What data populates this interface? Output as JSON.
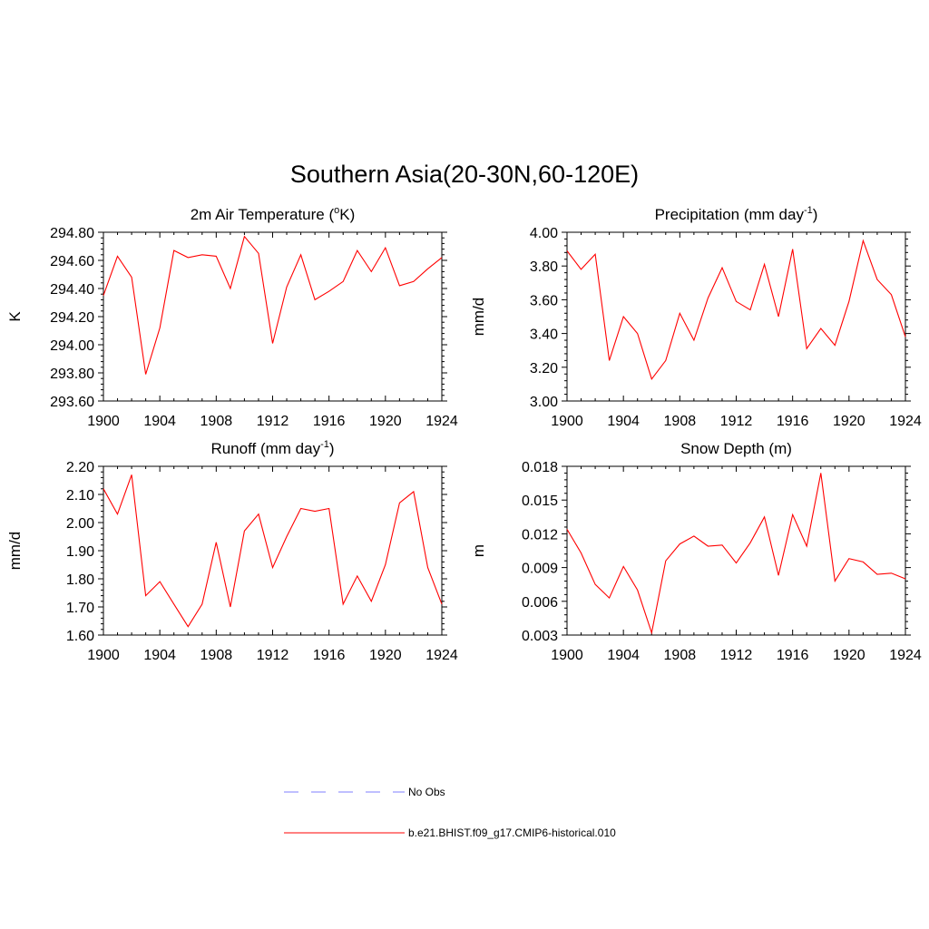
{
  "title": "Southern Asia(20-30N,60-120E)",
  "colors": {
    "model": "#ff0000",
    "obs": "#9999ff",
    "axis": "#000000"
  },
  "legend": {
    "entries": [
      {
        "label": "No Obs",
        "style": "dashed",
        "color": "#9999ff"
      },
      {
        "label": "b.e21.BHIST.f09_g17.CMIP6-historical.010",
        "style": "solid",
        "color": "#ff0000"
      }
    ]
  },
  "chart_data": [
    {
      "type": "line",
      "title_main": "2m Air Temperature (",
      "title_sup": "o",
      "title_after": "K)",
      "ylabel": "K",
      "xlim": [
        1900,
        1924
      ],
      "ylim": [
        293.6,
        294.8
      ],
      "xticks": [
        1900,
        1904,
        1908,
        1912,
        1916,
        1920,
        1924
      ],
      "xtick_labels": [
        "1900",
        "1904",
        "1908",
        "1912",
        "1916",
        "1920",
        "1924"
      ],
      "yticks": [
        293.6,
        293.8,
        294.0,
        294.2,
        294.4,
        294.6,
        294.8
      ],
      "ytick_labels": [
        "293.60",
        "293.80",
        "294.00",
        "294.20",
        "294.40",
        "294.60",
        "294.80"
      ],
      "x": [
        1900,
        1901,
        1902,
        1903,
        1904,
        1905,
        1906,
        1907,
        1908,
        1909,
        1910,
        1911,
        1912,
        1913,
        1914,
        1915,
        1916,
        1917,
        1918,
        1919,
        1920,
        1921,
        1922,
        1923,
        1924
      ],
      "series": [
        {
          "values": [
            294.35,
            294.63,
            294.48,
            293.79,
            294.12,
            294.67,
            294.62,
            294.64,
            294.63,
            294.4,
            294.77,
            294.65,
            294.01,
            294.41,
            294.64,
            294.32,
            294.38,
            294.45,
            294.67,
            294.52,
            294.69,
            294.42,
            294.45,
            294.54,
            294.62
          ]
        }
      ]
    },
    {
      "type": "line",
      "title_main": "Precipitation (mm day",
      "title_sup": "-1",
      "title_after": ")",
      "ylabel": "mm/d",
      "xlim": [
        1900,
        1924
      ],
      "ylim": [
        3.0,
        4.0
      ],
      "xticks": [
        1900,
        1904,
        1908,
        1912,
        1916,
        1920,
        1924
      ],
      "xtick_labels": [
        "1900",
        "1904",
        "1908",
        "1912",
        "1916",
        "1920",
        "1924"
      ],
      "yticks": [
        3.0,
        3.2,
        3.4,
        3.6,
        3.8,
        4.0
      ],
      "ytick_labels": [
        "3.00",
        "3.20",
        "3.40",
        "3.60",
        "3.80",
        "4.00"
      ],
      "x": [
        1900,
        1901,
        1902,
        1903,
        1904,
        1905,
        1906,
        1907,
        1908,
        1909,
        1910,
        1911,
        1912,
        1913,
        1914,
        1915,
        1916,
        1917,
        1918,
        1919,
        1920,
        1921,
        1922,
        1923,
        1924
      ],
      "series": [
        {
          "values": [
            3.89,
            3.78,
            3.87,
            3.24,
            3.5,
            3.4,
            3.13,
            3.24,
            3.52,
            3.36,
            3.61,
            3.79,
            3.59,
            3.54,
            3.81,
            3.5,
            3.9,
            3.31,
            3.43,
            3.33,
            3.59,
            3.95,
            3.72,
            3.63,
            3.38
          ]
        }
      ]
    },
    {
      "type": "line",
      "title_main": "Runoff (mm day",
      "title_sup": "-1",
      "title_after": ")",
      "ylabel": "mm/d",
      "xlim": [
        1900,
        1924
      ],
      "ylim": [
        1.6,
        2.2
      ],
      "xticks": [
        1900,
        1904,
        1908,
        1912,
        1916,
        1920,
        1924
      ],
      "xtick_labels": [
        "1900",
        "1904",
        "1908",
        "1912",
        "1916",
        "1920",
        "1924"
      ],
      "yticks": [
        1.6,
        1.7,
        1.8,
        1.9,
        2.0,
        2.1,
        2.2
      ],
      "ytick_labels": [
        "1.60",
        "1.70",
        "1.80",
        "1.90",
        "2.00",
        "2.10",
        "2.20"
      ],
      "x": [
        1900,
        1901,
        1902,
        1903,
        1904,
        1905,
        1906,
        1907,
        1908,
        1909,
        1910,
        1911,
        1912,
        1913,
        1914,
        1915,
        1916,
        1917,
        1918,
        1919,
        1920,
        1921,
        1922,
        1923,
        1924
      ],
      "series": [
        {
          "values": [
            2.12,
            2.03,
            2.17,
            1.74,
            1.79,
            1.71,
            1.63,
            1.71,
            1.93,
            1.7,
            1.97,
            2.03,
            1.84,
            1.95,
            2.05,
            2.04,
            2.05,
            1.71,
            1.81,
            1.72,
            1.85,
            2.07,
            2.11,
            1.84,
            1.71
          ]
        }
      ]
    },
    {
      "type": "line",
      "title_main": "Snow Depth (m)",
      "title_sup": "",
      "title_after": "",
      "ylabel": "m",
      "xlim": [
        1900,
        1924
      ],
      "ylim": [
        0.003,
        0.018
      ],
      "xticks": [
        1900,
        1904,
        1908,
        1912,
        1916,
        1920,
        1924
      ],
      "xtick_labels": [
        "1900",
        "1904",
        "1908",
        "1912",
        "1916",
        "1920",
        "1924"
      ],
      "yticks": [
        0.003,
        0.006,
        0.009,
        0.012,
        0.015,
        0.018
      ],
      "ytick_labels": [
        "0.003",
        "0.006",
        "0.009",
        "0.012",
        "0.015",
        "0.018"
      ],
      "x": [
        1900,
        1901,
        1902,
        1903,
        1904,
        1905,
        1906,
        1907,
        1908,
        1909,
        1910,
        1911,
        1912,
        1913,
        1914,
        1915,
        1916,
        1917,
        1918,
        1919,
        1920,
        1921,
        1922,
        1923,
        1924
      ],
      "series": [
        {
          "values": [
            0.0124,
            0.0103,
            0.0075,
            0.0063,
            0.0091,
            0.007,
            0.0032,
            0.0096,
            0.0111,
            0.0118,
            0.0109,
            0.011,
            0.0094,
            0.0112,
            0.0135,
            0.0083,
            0.0137,
            0.0109,
            0.0174,
            0.0078,
            0.0098,
            0.0095,
            0.0084,
            0.0085,
            0.008
          ]
        }
      ]
    }
  ]
}
